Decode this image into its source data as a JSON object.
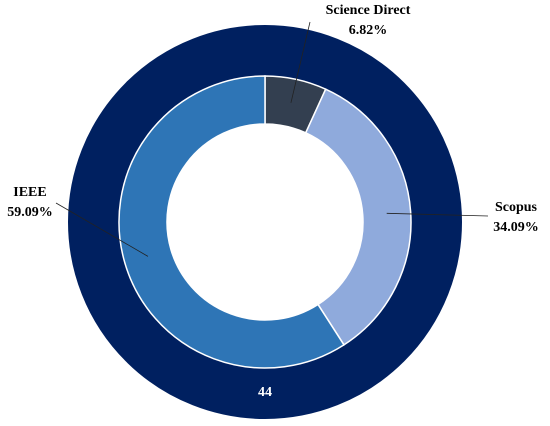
{
  "chart_data": {
    "type": "donut",
    "categories": [
      "Science Direct",
      "Scopus",
      "IEEE"
    ],
    "values": [
      6.82,
      34.09,
      59.09
    ],
    "value_labels": [
      "6.82%",
      "34.09%",
      "59.09%"
    ],
    "colors": [
      "#333f50",
      "#8faadc",
      "#2e75b6"
    ],
    "total": 44,
    "total_color": "#002060"
  }
}
